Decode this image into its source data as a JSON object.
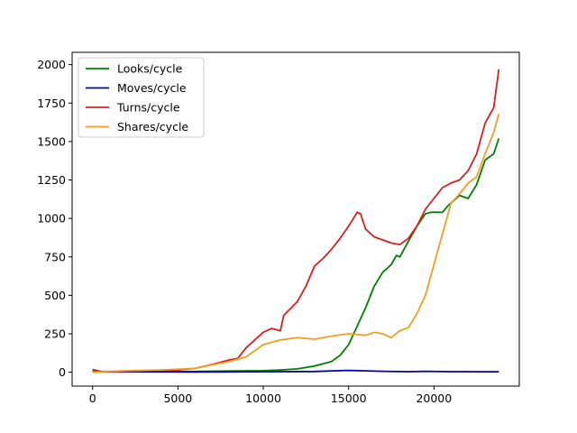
{
  "chart_data": {
    "type": "line",
    "title": "",
    "xlabel": "",
    "ylabel": "",
    "xlim": [
      -1200,
      25000
    ],
    "ylim": [
      -90,
      2080
    ],
    "x_ticks": [
      0,
      5000,
      10000,
      15000,
      20000
    ],
    "y_ticks": [
      0,
      250,
      500,
      750,
      1000,
      1250,
      1500,
      1750,
      2000
    ],
    "grid": false,
    "legend": "top-left",
    "series": [
      {
        "name": "Looks/cycle",
        "color": "#008000",
        "points": [
          [
            0,
            18
          ],
          [
            500,
            5
          ],
          [
            2000,
            4
          ],
          [
            4000,
            4
          ],
          [
            6000,
            5
          ],
          [
            8000,
            8
          ],
          [
            10000,
            10
          ],
          [
            11000,
            15
          ],
          [
            12000,
            22
          ],
          [
            13000,
            40
          ],
          [
            14000,
            70
          ],
          [
            14500,
            110
          ],
          [
            15000,
            180
          ],
          [
            15500,
            300
          ],
          [
            16000,
            420
          ],
          [
            16500,
            560
          ],
          [
            17000,
            650
          ],
          [
            17500,
            700
          ],
          [
            17800,
            760
          ],
          [
            18000,
            750
          ],
          [
            18500,
            850
          ],
          [
            19000,
            950
          ],
          [
            19500,
            1030
          ],
          [
            19800,
            1040
          ],
          [
            20500,
            1040
          ],
          [
            20800,
            1080
          ],
          [
            21500,
            1150
          ],
          [
            22000,
            1130
          ],
          [
            22500,
            1220
          ],
          [
            23000,
            1380
          ],
          [
            23500,
            1420
          ],
          [
            23800,
            1520
          ]
        ]
      },
      {
        "name": "Moves/cycle",
        "color": "#0000b3",
        "points": [
          [
            0,
            2
          ],
          [
            2000,
            3
          ],
          [
            6000,
            2
          ],
          [
            9000,
            3
          ],
          [
            13000,
            5
          ],
          [
            15000,
            12
          ],
          [
            17000,
            6
          ],
          [
            18500,
            4
          ],
          [
            19500,
            6
          ],
          [
            21000,
            4
          ],
          [
            23800,
            3
          ]
        ]
      },
      {
        "name": "Turns/cycle",
        "color": "#d62020",
        "points": [
          [
            0,
            10
          ],
          [
            500,
            5
          ],
          [
            1500,
            5
          ],
          [
            3000,
            10
          ],
          [
            5000,
            15
          ],
          [
            6000,
            25
          ],
          [
            7000,
            50
          ],
          [
            8000,
            80
          ],
          [
            8500,
            90
          ],
          [
            9000,
            160
          ],
          [
            10000,
            260
          ],
          [
            10500,
            285
          ],
          [
            11000,
            270
          ],
          [
            11200,
            370
          ],
          [
            12000,
            460
          ],
          [
            12500,
            560
          ],
          [
            13000,
            690
          ],
          [
            13500,
            740
          ],
          [
            14000,
            800
          ],
          [
            14500,
            870
          ],
          [
            15000,
            950
          ],
          [
            15500,
            1040
          ],
          [
            15700,
            1030
          ],
          [
            16000,
            930
          ],
          [
            16500,
            880
          ],
          [
            17000,
            860
          ],
          [
            17500,
            840
          ],
          [
            18000,
            830
          ],
          [
            18500,
            870
          ],
          [
            19000,
            950
          ],
          [
            19500,
            1060
          ],
          [
            20000,
            1130
          ],
          [
            20500,
            1200
          ],
          [
            21000,
            1230
          ],
          [
            21500,
            1250
          ],
          [
            22000,
            1310
          ],
          [
            22500,
            1420
          ],
          [
            23000,
            1620
          ],
          [
            23500,
            1720
          ],
          [
            23800,
            1970
          ]
        ]
      },
      {
        "name": "Shares/cycle",
        "color": "#f0a020",
        "points": [
          [
            0,
            0
          ],
          [
            2000,
            10
          ],
          [
            4000,
            15
          ],
          [
            6000,
            25
          ],
          [
            8000,
            70
          ],
          [
            9000,
            100
          ],
          [
            10000,
            180
          ],
          [
            11000,
            210
          ],
          [
            12000,
            225
          ],
          [
            13000,
            215
          ],
          [
            14000,
            235
          ],
          [
            15000,
            250
          ],
          [
            16000,
            240
          ],
          [
            16500,
            260
          ],
          [
            17000,
            250
          ],
          [
            17500,
            225
          ],
          [
            18000,
            270
          ],
          [
            18500,
            290
          ],
          [
            19000,
            380
          ],
          [
            19500,
            500
          ],
          [
            20000,
            700
          ],
          [
            20500,
            900
          ],
          [
            21000,
            1100
          ],
          [
            21500,
            1160
          ],
          [
            22000,
            1230
          ],
          [
            22500,
            1270
          ],
          [
            23000,
            1420
          ],
          [
            23500,
            1560
          ],
          [
            23800,
            1680
          ]
        ]
      }
    ]
  }
}
